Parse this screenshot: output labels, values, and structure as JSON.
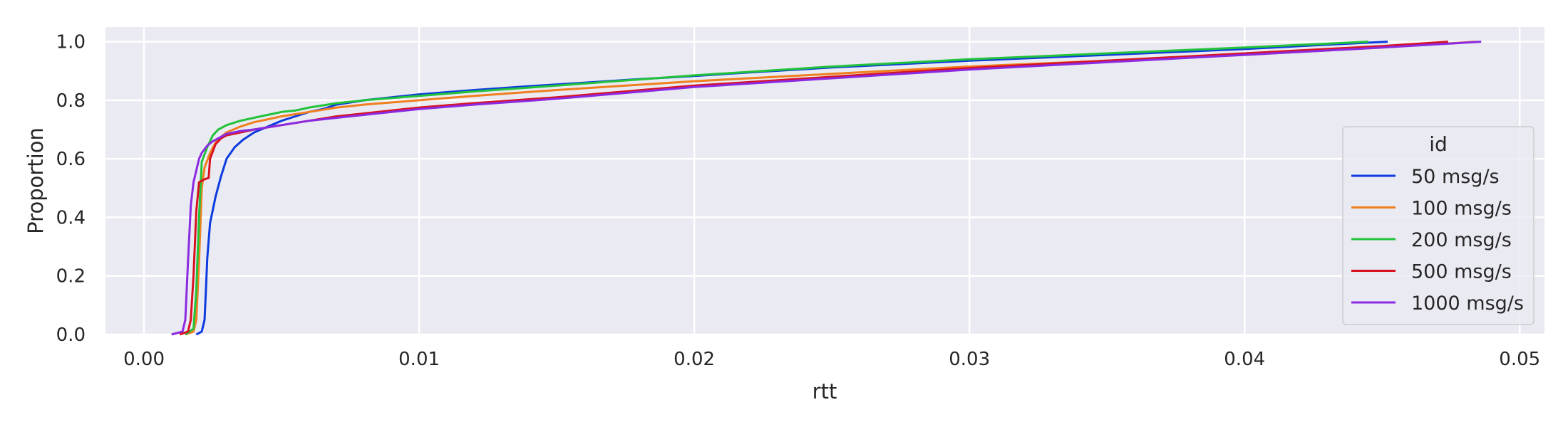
{
  "chart_data": {
    "type": "line",
    "kind": "ecdf",
    "title": "",
    "xlabel": "rtt",
    "ylabel": "Proportion",
    "xlim": [
      -0.0014,
      0.0509
    ],
    "ylim": [
      0,
      1.05
    ],
    "xticks": [
      0.0,
      0.01,
      0.02,
      0.03,
      0.04,
      0.05
    ],
    "xtick_labels": [
      "0.00",
      "0.01",
      "0.02",
      "0.03",
      "0.04",
      "0.05"
    ],
    "yticks": [
      0.0,
      0.2,
      0.4,
      0.6,
      0.8,
      1.0
    ],
    "ytick_labels": [
      "0.0",
      "0.2",
      "0.4",
      "0.6",
      "0.8",
      "1.0"
    ],
    "grid": true,
    "background": "#eaeaf2",
    "legend": {
      "title": "id",
      "placement": "center-right"
    },
    "series": [
      {
        "name": "50 msg/s",
        "color": "#0d3be0",
        "x": [
          0.0019,
          0.0021,
          0.0022,
          0.00225,
          0.0023,
          0.0024,
          0.0026,
          0.0028,
          0.003,
          0.0033,
          0.0036,
          0.004,
          0.0045,
          0.005,
          0.0055,
          0.006,
          0.0065,
          0.007,
          0.008,
          0.009,
          0.01,
          0.012,
          0.014,
          0.016,
          0.018,
          0.02,
          0.022,
          0.025,
          0.03,
          0.035,
          0.04,
          0.043,
          0.0452
        ],
        "y": [
          0.0,
          0.01,
          0.05,
          0.15,
          0.26,
          0.38,
          0.47,
          0.54,
          0.6,
          0.64,
          0.665,
          0.69,
          0.71,
          0.73,
          0.745,
          0.76,
          0.77,
          0.785,
          0.8,
          0.81,
          0.82,
          0.835,
          0.848,
          0.86,
          0.872,
          0.883,
          0.895,
          0.912,
          0.935,
          0.955,
          0.975,
          0.99,
          1.0
        ]
      },
      {
        "name": "100 msg/s",
        "color": "#f07f1e",
        "x": [
          0.0015,
          0.0018,
          0.0019,
          0.002,
          0.0021,
          0.0022,
          0.0024,
          0.0026,
          0.0028,
          0.003,
          0.0035,
          0.004,
          0.005,
          0.006,
          0.007,
          0.008,
          0.01,
          0.012,
          0.015,
          0.02,
          0.025,
          0.03,
          0.035,
          0.04,
          0.045,
          0.0484
        ],
        "y": [
          0.0,
          0.01,
          0.05,
          0.25,
          0.5,
          0.57,
          0.62,
          0.655,
          0.675,
          0.69,
          0.71,
          0.725,
          0.745,
          0.76,
          0.775,
          0.785,
          0.8,
          0.815,
          0.835,
          0.865,
          0.89,
          0.915,
          0.935,
          0.955,
          0.98,
          1.0
        ]
      },
      {
        "name": "200 msg/s",
        "color": "#22c33a",
        "x": [
          0.0015,
          0.0018,
          0.0019,
          0.002,
          0.0021,
          0.0023,
          0.0025,
          0.0027,
          0.003,
          0.0035,
          0.004,
          0.0045,
          0.005,
          0.0055,
          0.006,
          0.007,
          0.008,
          0.01,
          0.012,
          0.015,
          0.02,
          0.025,
          0.03,
          0.035,
          0.04,
          0.0445
        ],
        "y": [
          0.0,
          0.02,
          0.15,
          0.4,
          0.59,
          0.64,
          0.68,
          0.7,
          0.715,
          0.73,
          0.74,
          0.75,
          0.76,
          0.765,
          0.775,
          0.79,
          0.8,
          0.815,
          0.83,
          0.85,
          0.885,
          0.915,
          0.94,
          0.96,
          0.98,
          1.0
        ]
      },
      {
        "name": "500 msg/s",
        "color": "#d81120",
        "x": [
          0.0013,
          0.0016,
          0.0017,
          0.0018,
          0.0019,
          0.002,
          0.0021,
          0.0022,
          0.00235,
          0.0024,
          0.0026,
          0.0028,
          0.003,
          0.0035,
          0.004,
          0.005,
          0.006,
          0.007,
          0.008,
          0.009,
          0.01,
          0.012,
          0.015,
          0.02,
          0.025,
          0.03,
          0.035,
          0.04,
          0.045,
          0.0474
        ],
        "y": [
          0.0,
          0.01,
          0.05,
          0.2,
          0.42,
          0.52,
          0.525,
          0.53,
          0.535,
          0.6,
          0.65,
          0.67,
          0.68,
          0.69,
          0.7,
          0.715,
          0.73,
          0.745,
          0.755,
          0.765,
          0.775,
          0.79,
          0.81,
          0.85,
          0.88,
          0.91,
          0.935,
          0.96,
          0.985,
          1.0
        ]
      },
      {
        "name": "1000 msg/s",
        "color": "#8a2be2",
        "x": [
          0.001,
          0.0014,
          0.0015,
          0.0016,
          0.0017,
          0.0018,
          0.0019,
          0.002,
          0.0021,
          0.0023,
          0.0025,
          0.0028,
          0.003,
          0.0035,
          0.004,
          0.005,
          0.006,
          0.007,
          0.008,
          0.01,
          0.012,
          0.015,
          0.02,
          0.025,
          0.03,
          0.035,
          0.04,
          0.045,
          0.0486
        ],
        "y": [
          0.0,
          0.01,
          0.05,
          0.25,
          0.44,
          0.52,
          0.56,
          0.6,
          0.62,
          0.645,
          0.66,
          0.675,
          0.685,
          0.695,
          0.7,
          0.715,
          0.73,
          0.74,
          0.75,
          0.77,
          0.785,
          0.805,
          0.845,
          0.875,
          0.905,
          0.93,
          0.955,
          0.98,
          1.0
        ]
      }
    ]
  }
}
